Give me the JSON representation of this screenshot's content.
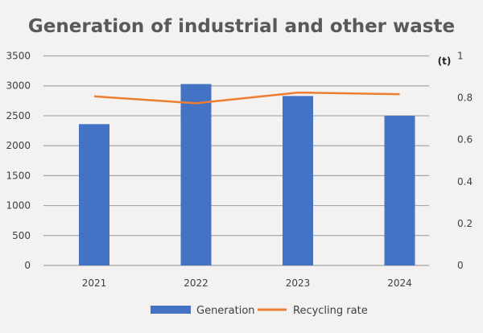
{
  "chart_data": {
    "type": "bar+line",
    "title": "Generation of industrial and other waste",
    "unit_label": "(t)",
    "categories": [
      "2021",
      "2022",
      "2023",
      "2024"
    ],
    "series": [
      {
        "name": "Generation",
        "type": "bar",
        "axis": "left",
        "color": "#4472c4",
        "values": [
          2360,
          3030,
          2830,
          2500
        ]
      },
      {
        "name": "Recycling rate",
        "type": "line",
        "axis": "right",
        "color": "#ed7d31",
        "values": [
          0.807,
          0.774,
          0.825,
          0.817
        ]
      }
    ],
    "left_axis": {
      "ylim": [
        0,
        3500
      ],
      "ticks": [
        "0",
        "500",
        "1000",
        "1500",
        "2000",
        "2500",
        "3000",
        "3500"
      ]
    },
    "right_axis": {
      "ylim": [
        0,
        1
      ],
      "ticks": [
        "0",
        "0.2",
        "0.4",
        "0.6",
        "0.8",
        "1"
      ]
    },
    "grid": true,
    "legend_placement": "bottom"
  }
}
